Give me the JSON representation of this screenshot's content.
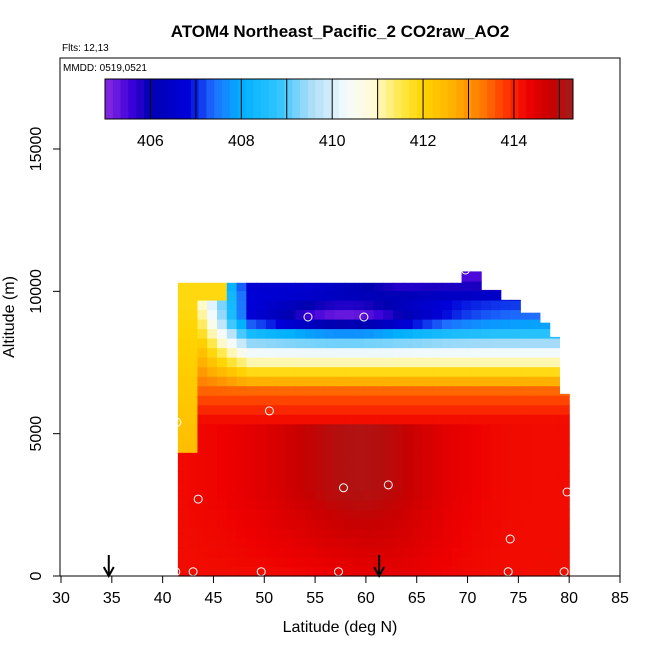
{
  "chart_data": {
    "type": "heatmap",
    "title": "ATOM4 Northeast_Pacific_2 CO2raw_AO2",
    "flights_label": "Flts: 12,13",
    "mmdd_label": "MMDD: 0519,0521",
    "xlabel": "Latitude (deg N)",
    "ylabel": "Altitude (m)",
    "xlim": [
      30,
      85
    ],
    "ylim": [
      0,
      17500
    ],
    "x_ticks": [
      30,
      35,
      40,
      45,
      50,
      55,
      60,
      65,
      70,
      75,
      80,
      85
    ],
    "y_ticks": [
      0,
      5000,
      10000,
      15000
    ],
    "colorbar": {
      "min": 405,
      "max": 415.3,
      "tick_values": [
        406,
        408,
        410,
        412,
        414
      ],
      "tick_labels": [
        "406",
        "408",
        "410",
        "412",
        "414"
      ],
      "colors": [
        {
          "v": 405.0,
          "c": "#8a2be2"
        },
        {
          "v": 405.6,
          "c": "#3a00d8"
        },
        {
          "v": 406.0,
          "c": "#0000b0"
        },
        {
          "v": 406.8,
          "c": "#0000d8"
        },
        {
          "v": 407.4,
          "c": "#1f6fff"
        },
        {
          "v": 408.0,
          "c": "#00b0ff"
        },
        {
          "v": 408.8,
          "c": "#2ec4ff"
        },
        {
          "v": 409.5,
          "c": "#a8dcf8"
        },
        {
          "v": 410.3,
          "c": "#f4fbfe"
        },
        {
          "v": 410.9,
          "c": "#fffbd6"
        },
        {
          "v": 411.5,
          "c": "#ffe94a"
        },
        {
          "v": 412.0,
          "c": "#ffd400"
        },
        {
          "v": 412.7,
          "c": "#ffae00"
        },
        {
          "v": 413.3,
          "c": "#ff7a00"
        },
        {
          "v": 413.8,
          "c": "#ff3a00"
        },
        {
          "v": 414.3,
          "c": "#ee0000"
        },
        {
          "v": 414.8,
          "c": "#c80000"
        },
        {
          "v": 415.3,
          "c": "#a01e1e"
        }
      ]
    },
    "field": {
      "lat_min": 41.5,
      "lat_max": 80,
      "alt_min": 0,
      "alt_max": 10700,
      "cols": 40,
      "rows": 32
    },
    "flight_arrows_lat": [
      34.7,
      61.3
    ],
    "sample_points": [
      {
        "lat": 41.3,
        "alt": 150
      },
      {
        "lat": 43.0,
        "alt": 150
      },
      {
        "lat": 49.7,
        "alt": 150
      },
      {
        "lat": 57.3,
        "alt": 150
      },
      {
        "lat": 74.0,
        "alt": 150
      },
      {
        "lat": 79.5,
        "alt": 150
      },
      {
        "lat": 74.2,
        "alt": 1300
      },
      {
        "lat": 43.5,
        "alt": 2700
      },
      {
        "lat": 57.8,
        "alt": 3100
      },
      {
        "lat": 62.2,
        "alt": 3200
      },
      {
        "lat": 79.8,
        "alt": 2950
      },
      {
        "lat": 41.4,
        "alt": 5400
      },
      {
        "lat": 50.5,
        "alt": 5800
      },
      {
        "lat": 54.3,
        "alt": 9100
      },
      {
        "lat": 59.8,
        "alt": 9100
      },
      {
        "lat": 69.8,
        "alt": 10750
      }
    ]
  }
}
